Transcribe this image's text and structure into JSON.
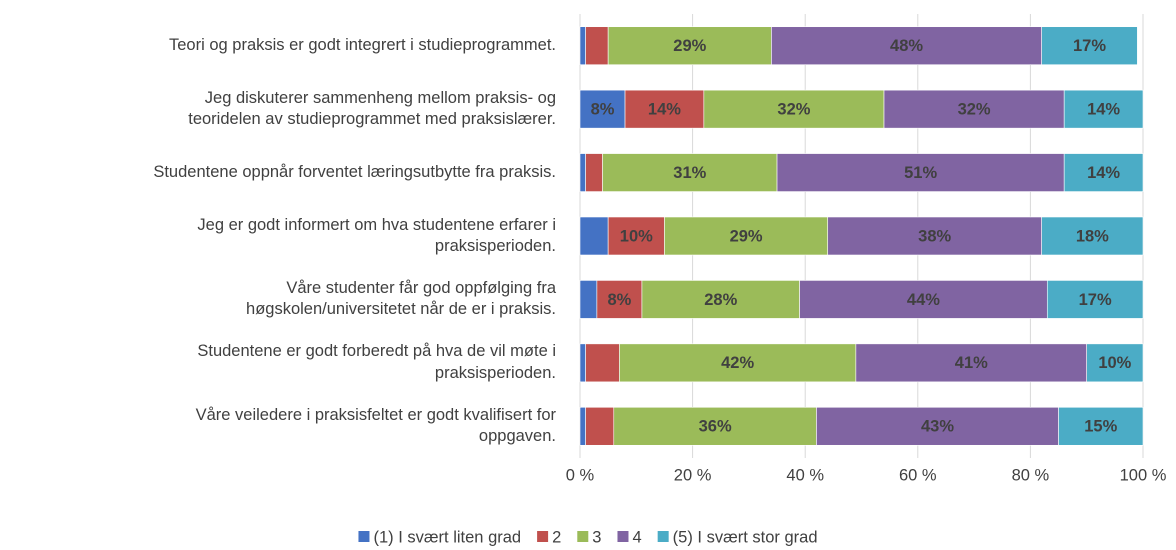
{
  "chart_data": {
    "type": "stacked_bar_horizontal",
    "categories": [
      "Teori og praksis er godt integrert i studieprogrammet.",
      "Jeg diskuterer sammenheng mellom praksis- og\nteoridelen av studieprogrammet med praksislærer.",
      "Studentene oppnår forventet læringsutbytte fra praksis.",
      "Jeg er godt informert om hva studentene erfarer i\npraksisperioden.",
      "Våre studenter får god oppfølging fra\nhøgskolen/universitetet når de er i praksis.",
      "Studentene er godt forberedt på hva de vil møte i\npraksisperioden.",
      "Våre veiledere i praksisfeltet er godt kvalifisert for\noppgaven."
    ],
    "series": [
      {
        "name": "(1) I svært liten grad",
        "color": "#4472c4",
        "values": [
          1,
          8,
          1,
          5,
          3,
          1,
          1
        ],
        "value_labels": [
          null,
          "8%",
          null,
          null,
          null,
          null,
          null
        ]
      },
      {
        "name": "2",
        "color": "#c0504d",
        "values": [
          4,
          14,
          3,
          10,
          8,
          6,
          5
        ],
        "value_labels": [
          null,
          "14%",
          null,
          "10%",
          "8%",
          null,
          null
        ]
      },
      {
        "name": "3",
        "color": "#9bbb59",
        "values": [
          29,
          32,
          31,
          29,
          28,
          42,
          36
        ],
        "value_labels": [
          "29%",
          "32%",
          "31%",
          "29%",
          "28%",
          "42%",
          "36%"
        ]
      },
      {
        "name": "4",
        "color": "#8064a2",
        "values": [
          48,
          32,
          51,
          38,
          44,
          41,
          43
        ],
        "value_labels": [
          "48%",
          "32%",
          "51%",
          "38%",
          "44%",
          "41%",
          "43%"
        ]
      },
      {
        "name": "(5) I svært stor grad",
        "color": "#4bacc6",
        "values": [
          17,
          14,
          14,
          18,
          17,
          10,
          15
        ],
        "value_labels": [
          "17%",
          "14%",
          "14%",
          "18%",
          "17%",
          "10%",
          "15%"
        ]
      }
    ],
    "xlim": [
      0,
      100
    ],
    "xticks": [
      {
        "value": 0,
        "label": "0 %"
      },
      {
        "value": 20,
        "label": "20 %"
      },
      {
        "value": 40,
        "label": "40 %"
      },
      {
        "value": 60,
        "label": "60 %"
      },
      {
        "value": 80,
        "label": "80 %"
      },
      {
        "value": 100,
        "label": "100 %"
      }
    ],
    "grid": true,
    "legend": "bottom"
  }
}
